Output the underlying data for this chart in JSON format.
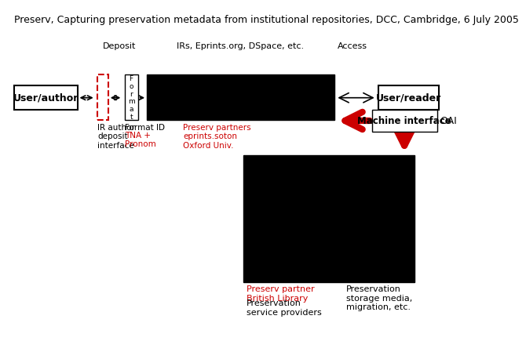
{
  "title": "Preserv, Capturing preservation metadata from institutional repositories, DCC, Cambridge, 6 July 2005",
  "title_fontsize": 9,
  "bg_color": "#ffffff",
  "black": "#000000",
  "red": "#cc0000",
  "label_deposit": "Deposit",
  "label_irs": "IRs, Eprints.org, DSpace, etc.",
  "label_access": "Access",
  "label_user_author": "User/author",
  "label_user_reader": "User/reader",
  "label_ir_deposit": "IR author\ndeposit\ninterface",
  "label_format": "F\no\nr\nm\na\nt",
  "label_format_id": "Format ID",
  "label_format_id2": "TNA +\nPronom",
  "label_preserv_partners": "Preserv partners\neprints.soton\nOxford Univ.",
  "label_machine": "Machine interface",
  "label_oai": "OAI",
  "label_preserv_partner_bl_red": "Preserv partner\nBritish Library",
  "label_preserv_partner_bl_black": "Preservation\nservice providers",
  "label_preservation_storage": "Preservation\nstorage media,\nmigration, etc."
}
